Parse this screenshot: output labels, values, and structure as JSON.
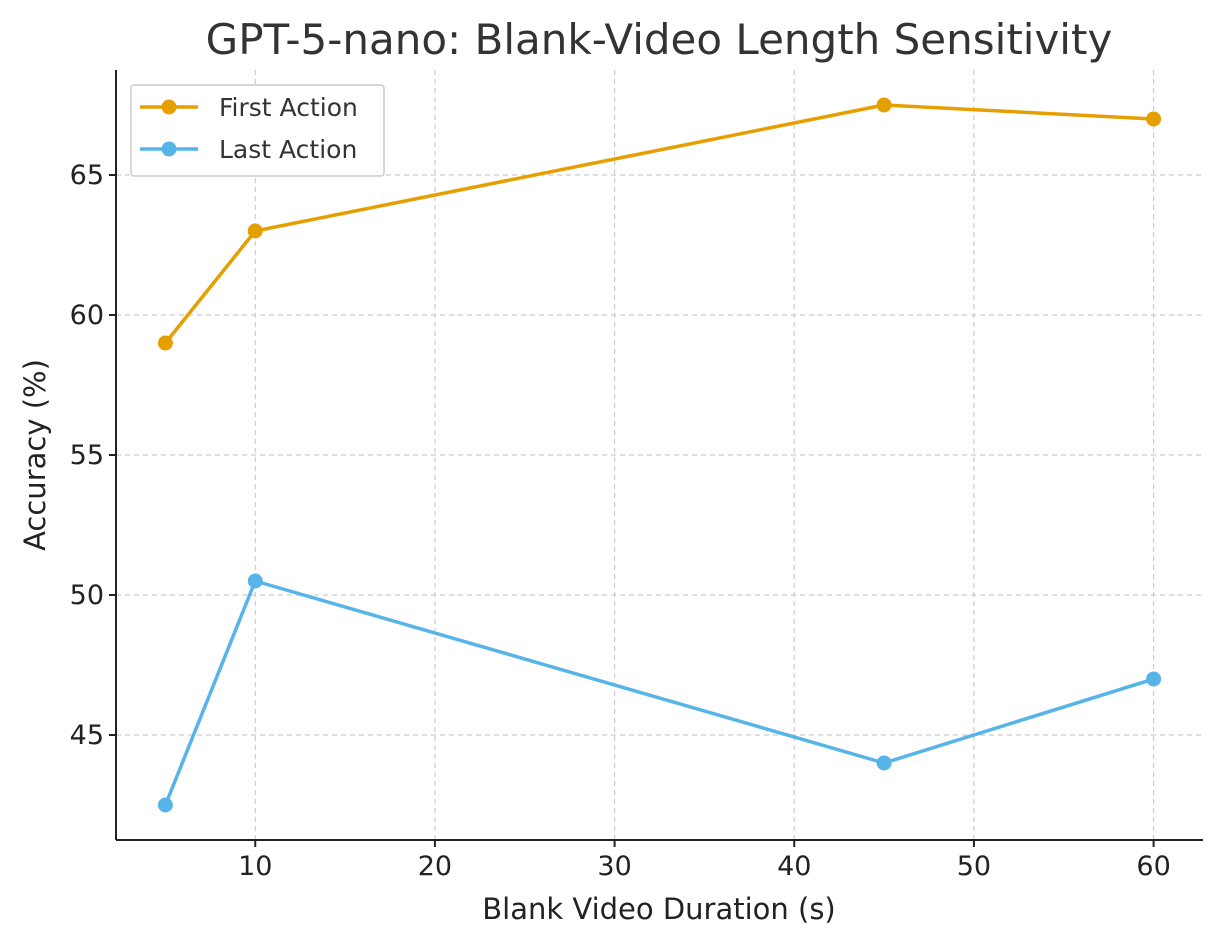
{
  "chart_data": {
    "type": "line",
    "title": "GPT-5-nano: Blank-Video Length Sensitivity",
    "xlabel": "Blank Video Duration (s)",
    "ylabel": "Accuracy (%)",
    "x": [
      5,
      10,
      45,
      60
    ],
    "series": [
      {
        "name": "First Action",
        "values": [
          59.0,
          63.0,
          67.5,
          67.0
        ],
        "color": "#E69F00"
      },
      {
        "name": "Last Action",
        "values": [
          42.5,
          50.5,
          44.0,
          47.0
        ],
        "color": "#56B4E9"
      }
    ],
    "xlim": [
      2.25,
      62.75
    ],
    "ylim": [
      41.25,
      68.75
    ],
    "xticks": [
      10,
      20,
      30,
      40,
      50,
      60
    ],
    "yticks": [
      45,
      50,
      55,
      60,
      65
    ],
    "grid": true,
    "legend": "top-left"
  }
}
